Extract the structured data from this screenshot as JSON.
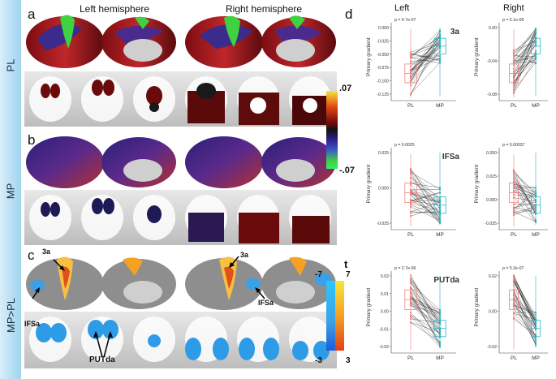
{
  "rows": [
    {
      "label": "PL",
      "panel": "a"
    },
    {
      "label": "MP",
      "panel": "b"
    },
    {
      "label": "MP>PL",
      "panel": "c"
    }
  ],
  "hemispheres": {
    "left": "Left hemisphere",
    "right": "Right hemisphere"
  },
  "colorbar_top": {
    "max": ".07",
    "min": "-.07"
  },
  "colorbar_t": {
    "title": "t",
    "neg_top": "-7",
    "neg_bottom": "-3",
    "pos_top": "7",
    "pos_bottom": "3"
  },
  "annotations": {
    "label_3a_left": "3a",
    "label_3a_right": "3a",
    "label_ifsa_left": "IFSa",
    "label_ifsa_right": "IFSa",
    "label_putda": "PUTda"
  },
  "panel_d": {
    "letter": "d",
    "col_left": "Left",
    "col_right": "Right"
  },
  "plots": {
    "ylabel": "Primary gradient",
    "xcats": [
      "PL",
      "MP"
    ],
    "r3a": {
      "region": "3a",
      "left": {
        "p": "p = 4.7e-07",
        "ticks": [
          "0.000",
          "-0.025",
          "-0.050",
          "-0.075",
          "-0.100",
          "-0.125"
        ]
      },
      "right": {
        "p": "p = 5.1e-06",
        "ticks": [
          "0.00",
          "-0.04",
          "-0.08"
        ]
      }
    },
    "rifsa": {
      "region": "IFSa",
      "left": {
        "p": "p = 0.0025",
        "ticks": [
          "0.025",
          "0.000",
          "-0.025"
        ]
      },
      "right": {
        "p": "p = 0.00037",
        "ticks": [
          "0.050",
          "0.025",
          "0.000",
          "-0.025"
        ]
      }
    },
    "rputda": {
      "region": "PUTda",
      "left": {
        "p": "p = 2.7e-06",
        "ticks": [
          "0.02",
          "0.01",
          "0.00",
          "-0.01",
          "-0.02"
        ]
      },
      "right": {
        "p": "p = 5.3e-07",
        "ticks": [
          "0.02",
          "0.00",
          "-0.02"
        ]
      }
    }
  },
  "colors": {
    "pl": "#f08080",
    "mp": "#2bb5c0",
    "line": "#222222",
    "band": "#9fd3ef"
  }
}
